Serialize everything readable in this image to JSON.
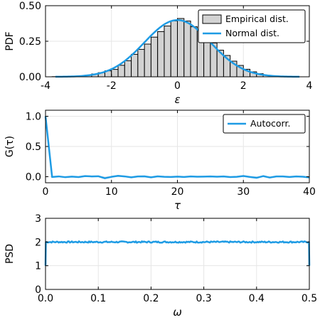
{
  "colors": {
    "series": "#1e9be4",
    "bar_fill": "#d3d3d3",
    "bar_edge": "#000000"
  },
  "chart_data": [
    {
      "id": "pdf",
      "type": "bar",
      "xlabel": "ε",
      "ylabel": "PDF",
      "xlim": [
        -4,
        4
      ],
      "ylim": [
        0,
        0.5
      ],
      "xticks": [
        -4,
        -2,
        0,
        2,
        4
      ],
      "xtick_labels": [
        "-4",
        "-2",
        "0",
        "2",
        "4"
      ],
      "yticks": [
        0,
        0.25,
        0.5
      ],
      "ytick_labels": [
        "0.00",
        "0.25",
        "0.50"
      ],
      "grid": true,
      "legend": {
        "placement": "top-right",
        "entries": [
          "Empirical dist.",
          "Normal dist."
        ]
      },
      "histogram": {
        "name": "Empirical dist.",
        "bin_edges": [
          -3.8,
          -3.6,
          -3.4,
          -3.2,
          -3.0,
          -2.8,
          -2.6,
          -2.4,
          -2.2,
          -2.0,
          -1.8,
          -1.6,
          -1.4,
          -1.2,
          -1.0,
          -0.8,
          -0.6,
          -0.4,
          -0.2,
          0.0,
          0.2,
          0.4,
          0.6,
          0.8,
          1.0,
          1.2,
          1.4,
          1.6,
          1.8,
          2.0,
          2.2,
          2.4,
          2.6
        ],
        "values": [
          0.001,
          0.001,
          0.002,
          0.003,
          0.006,
          0.011,
          0.02,
          0.029,
          0.042,
          0.052,
          0.081,
          0.113,
          0.158,
          0.193,
          0.23,
          0.279,
          0.318,
          0.357,
          0.393,
          0.41,
          0.392,
          0.352,
          0.33,
          0.281,
          0.238,
          0.187,
          0.15,
          0.11,
          0.08,
          0.053,
          0.035,
          0.022
        ]
      },
      "series": [
        {
          "name": "Normal dist.",
          "type": "line",
          "function": "normal_pdf",
          "mean": 0,
          "std": 1,
          "x_range": [
            -3.7,
            3.7
          ]
        }
      ]
    },
    {
      "id": "autocorr",
      "type": "line",
      "xlabel": "τ",
      "ylabel": "G(τ)",
      "xlim": [
        0,
        40
      ],
      "ylim": [
        -0.1,
        1.1
      ],
      "xticks": [
        0,
        10,
        20,
        30,
        40
      ],
      "xtick_labels": [
        "0",
        "10",
        "20",
        "30",
        "40"
      ],
      "yticks": [
        0,
        0.5,
        1
      ],
      "ytick_labels": [
        "0.0",
        "0.5",
        "1.0"
      ],
      "grid": true,
      "legend": {
        "placement": "top-right",
        "entries": [
          "Autocorr."
        ]
      },
      "series": [
        {
          "name": "Autocorr.",
          "x": [
            0,
            1,
            2,
            3,
            4,
            5,
            6,
            7,
            8,
            9,
            10,
            11,
            12,
            13,
            14,
            15,
            16,
            17,
            18,
            19,
            20,
            21,
            22,
            23,
            24,
            25,
            26,
            27,
            28,
            29,
            30,
            31,
            32,
            33,
            34,
            35,
            36,
            37,
            38,
            39,
            40
          ],
          "values": [
            1.0,
            -0.005,
            0.005,
            -0.008,
            0.002,
            -0.006,
            0.01,
            0.005,
            0.008,
            -0.025,
            -0.002,
            0.015,
            0.005,
            -0.01,
            0.004,
            0.006,
            -0.01,
            0.006,
            -0.002,
            -0.004,
            0.002,
            -0.004,
            0.004,
            0.0,
            0.002,
            0.004,
            0.0,
            0.004,
            -0.006,
            -0.002,
            0.012,
            -0.004,
            -0.018,
            0.01,
            -0.014,
            0.004,
            0.004,
            -0.004,
            0.004,
            0.0,
            -0.012
          ]
        }
      ]
    },
    {
      "id": "psd",
      "type": "line",
      "xlabel": "ω",
      "ylabel": "PSD",
      "xlim": [
        0,
        0.5
      ],
      "ylim": [
        0,
        3
      ],
      "xticks": [
        0,
        0.1,
        0.2,
        0.3,
        0.4,
        0.5
      ],
      "xtick_labels": [
        "0.0",
        "0.1",
        "0.2",
        "0.3",
        "0.4",
        "0.5"
      ],
      "yticks": [
        0,
        1,
        2,
        3
      ],
      "ytick_labels": [
        "0",
        "1",
        "2",
        "3"
      ],
      "grid": true,
      "series": [
        {
          "name": "PSD",
          "type": "line",
          "level": 2.0,
          "noise": 0.03,
          "endpoints": [
            1.0,
            1.0
          ]
        }
      ]
    }
  ]
}
